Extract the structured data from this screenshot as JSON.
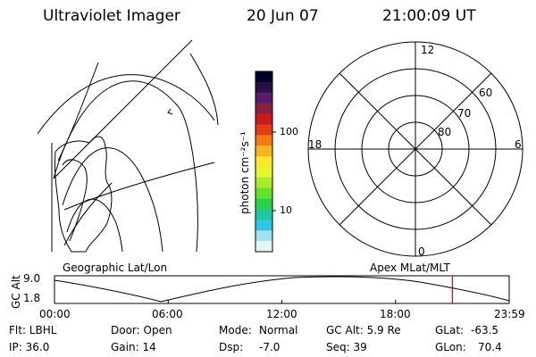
{
  "header": {
    "instrument": "Ultraviolet Imager",
    "date": "20 Jun 07",
    "time": "21:00:09 UT"
  },
  "colorbar": {
    "unit_label": "photon cm⁻²s⁻¹",
    "tick_100": "100",
    "tick_10": "10",
    "colors": [
      "#000030",
      "#2b1045",
      "#5a1d68",
      "#8a1f3f",
      "#c81a1a",
      "#e33a18",
      "#f27b12",
      "#f8b41e",
      "#fbe82a",
      "#e4f52a",
      "#a6ec28",
      "#5fe22a",
      "#27d34a",
      "#1ec9a6",
      "#30c5e6",
      "#9fe2f4",
      "#e6f4f8"
    ]
  },
  "polar_plot": {
    "labels_mlt": [
      "12",
      "18",
      "6",
      "0"
    ],
    "labels_lat": [
      "60",
      "70",
      "80"
    ]
  },
  "panel_labels": {
    "left": "Geographic Lat/Lon",
    "right": "Apex MLat/MLT"
  },
  "altitude_plot": {
    "ylabel": "GC Alt",
    "y_ticks": [
      "9.0",
      "1.8"
    ],
    "x_ticks": [
      "00:00",
      "06:00",
      "12:00",
      "18:00",
      "23:59"
    ],
    "current_time_marker_hour": 21.0
  },
  "info": {
    "flt": "Flt: LBHL",
    "ip": "IP: 36.0",
    "door": "Door: Open",
    "gain": "Gain: 14",
    "mode_label": "Mode:",
    "mode_value": "Normal",
    "dsp_label": "Dsp:",
    "dsp_value": "-7.0",
    "gc_alt": "GC Alt: 5.9 Re",
    "seq": "Seq: 39",
    "glat_label": "GLat:",
    "glat_value": "-63.5",
    "glon_label": "GLon:",
    "glon_value": "70.4"
  }
}
